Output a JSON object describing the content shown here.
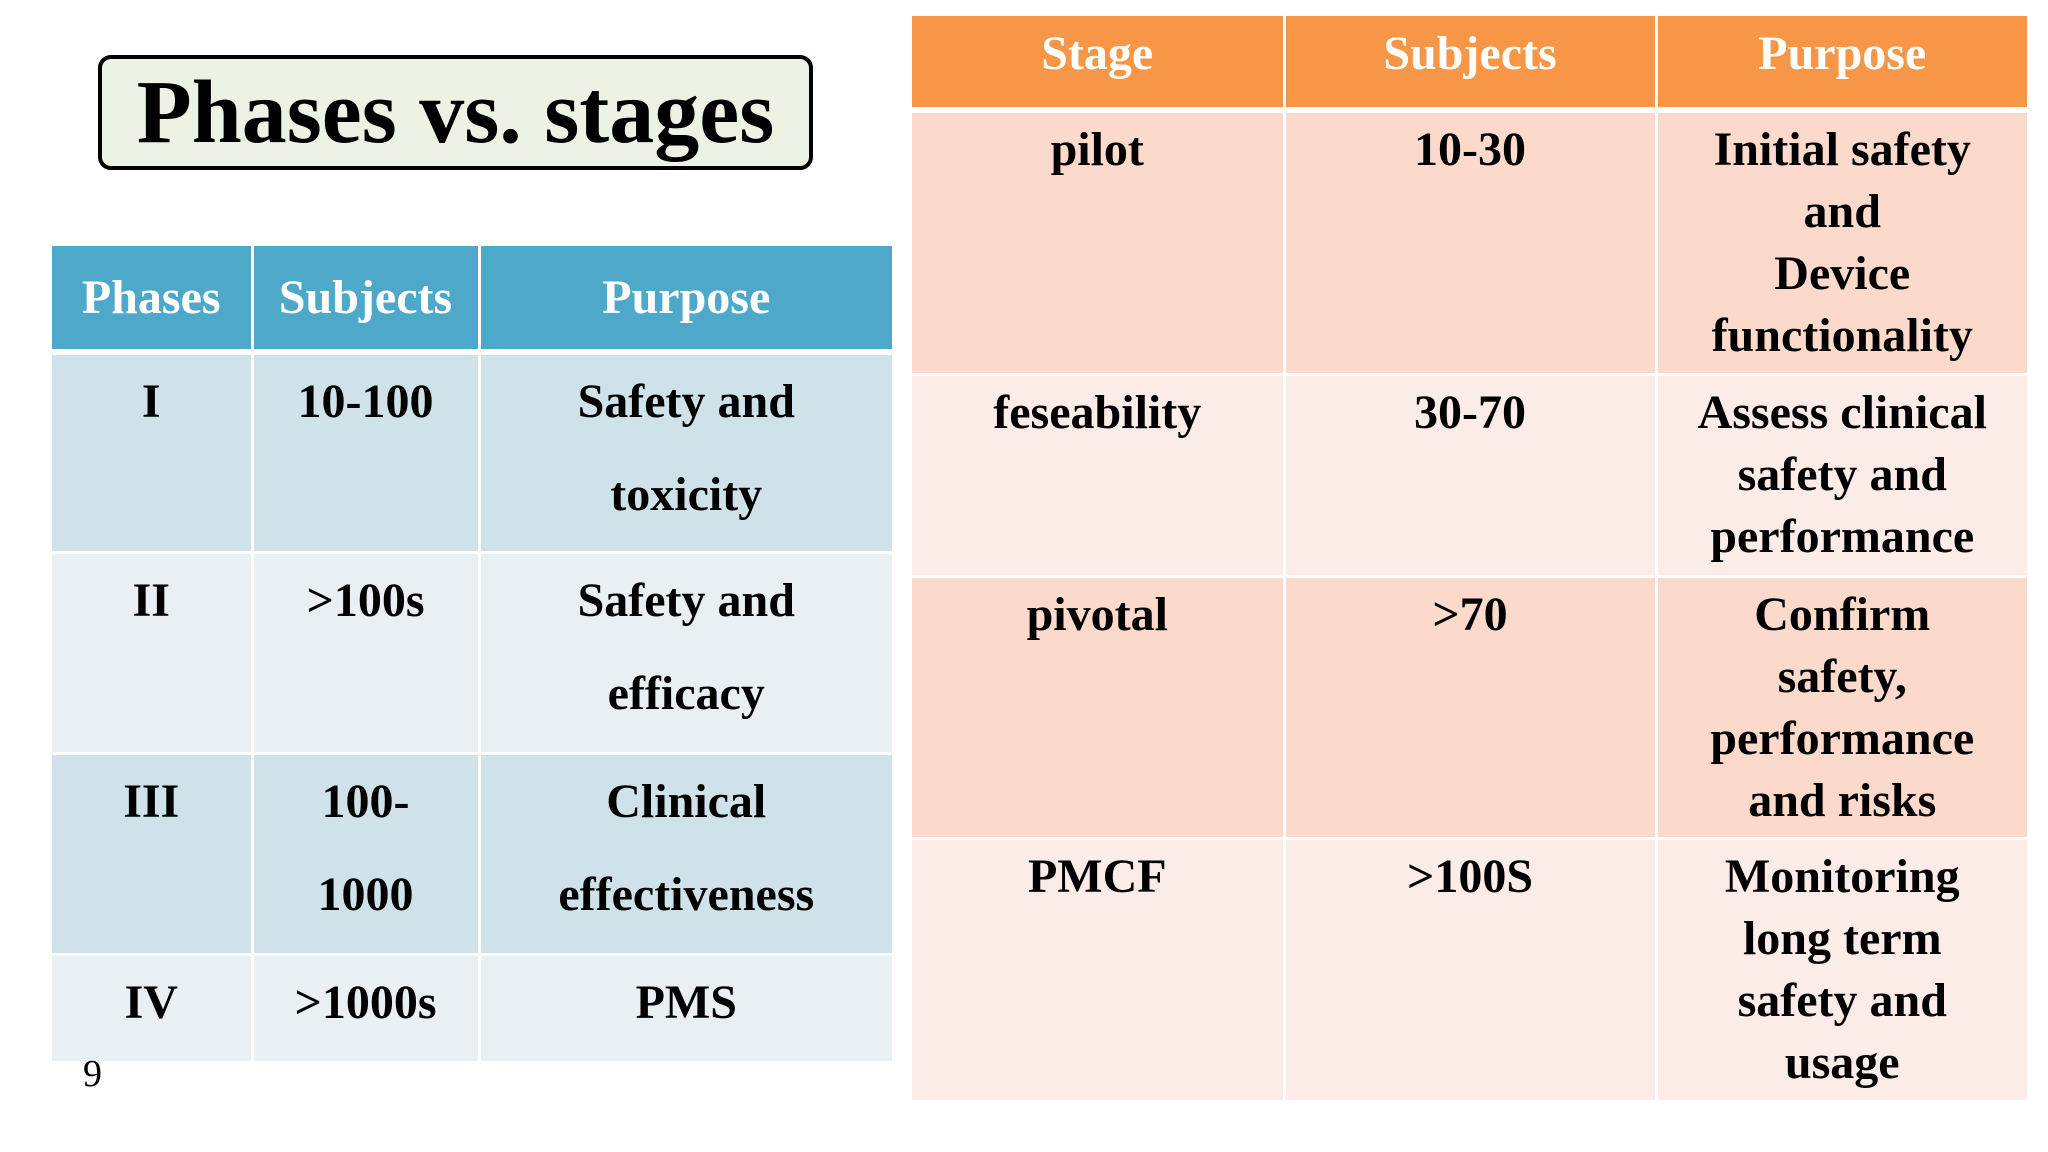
{
  "title": "Phases vs. stages",
  "page_number": "9",
  "phases_table": {
    "headers": [
      "Phases",
      "Subjects",
      "Purpose"
    ],
    "rows": [
      {
        "phase": "I",
        "subjects": "10-100",
        "purpose": [
          "Safety and",
          "toxicity"
        ]
      },
      {
        "phase": "II",
        "subjects": ">100s",
        "purpose": [
          "Safety and",
          "efficacy"
        ]
      },
      {
        "phase": "III",
        "subjects": [
          "100-",
          "1000"
        ],
        "purpose": [
          "Clinical",
          "effectiveness"
        ]
      },
      {
        "phase": "IV",
        "subjects": ">1000s",
        "purpose": [
          "PMS"
        ]
      }
    ]
  },
  "stages_table": {
    "headers": [
      "Stage",
      "Subjects",
      "Purpose"
    ],
    "rows": [
      {
        "stage": "pilot",
        "subjects": "10-30",
        "purpose": [
          "Initial safety",
          "and",
          "Device",
          "functionality"
        ]
      },
      {
        "stage": "feseability",
        "subjects": "30-70",
        "purpose": [
          "Assess clinical",
          "safety and",
          "performance"
        ]
      },
      {
        "stage": "pivotal",
        "subjects": ">70",
        "purpose": [
          "Confirm",
          "safety,",
          "performance",
          "and risks"
        ]
      },
      {
        "stage": "PMCF",
        "subjects": ">100S",
        "purpose": [
          "Monitoring",
          "long term",
          "safety and",
          "usage"
        ]
      }
    ]
  },
  "colors": {
    "phases_header": "#4da8c9",
    "phases_row_dark": "#cfe2e9",
    "phases_row_light": "#e8f0f4",
    "stages_header": "#f79646",
    "stages_row_dark": "#fbd9cb",
    "stages_row_light": "#fcece7",
    "title_background": "#edf3e4"
  }
}
